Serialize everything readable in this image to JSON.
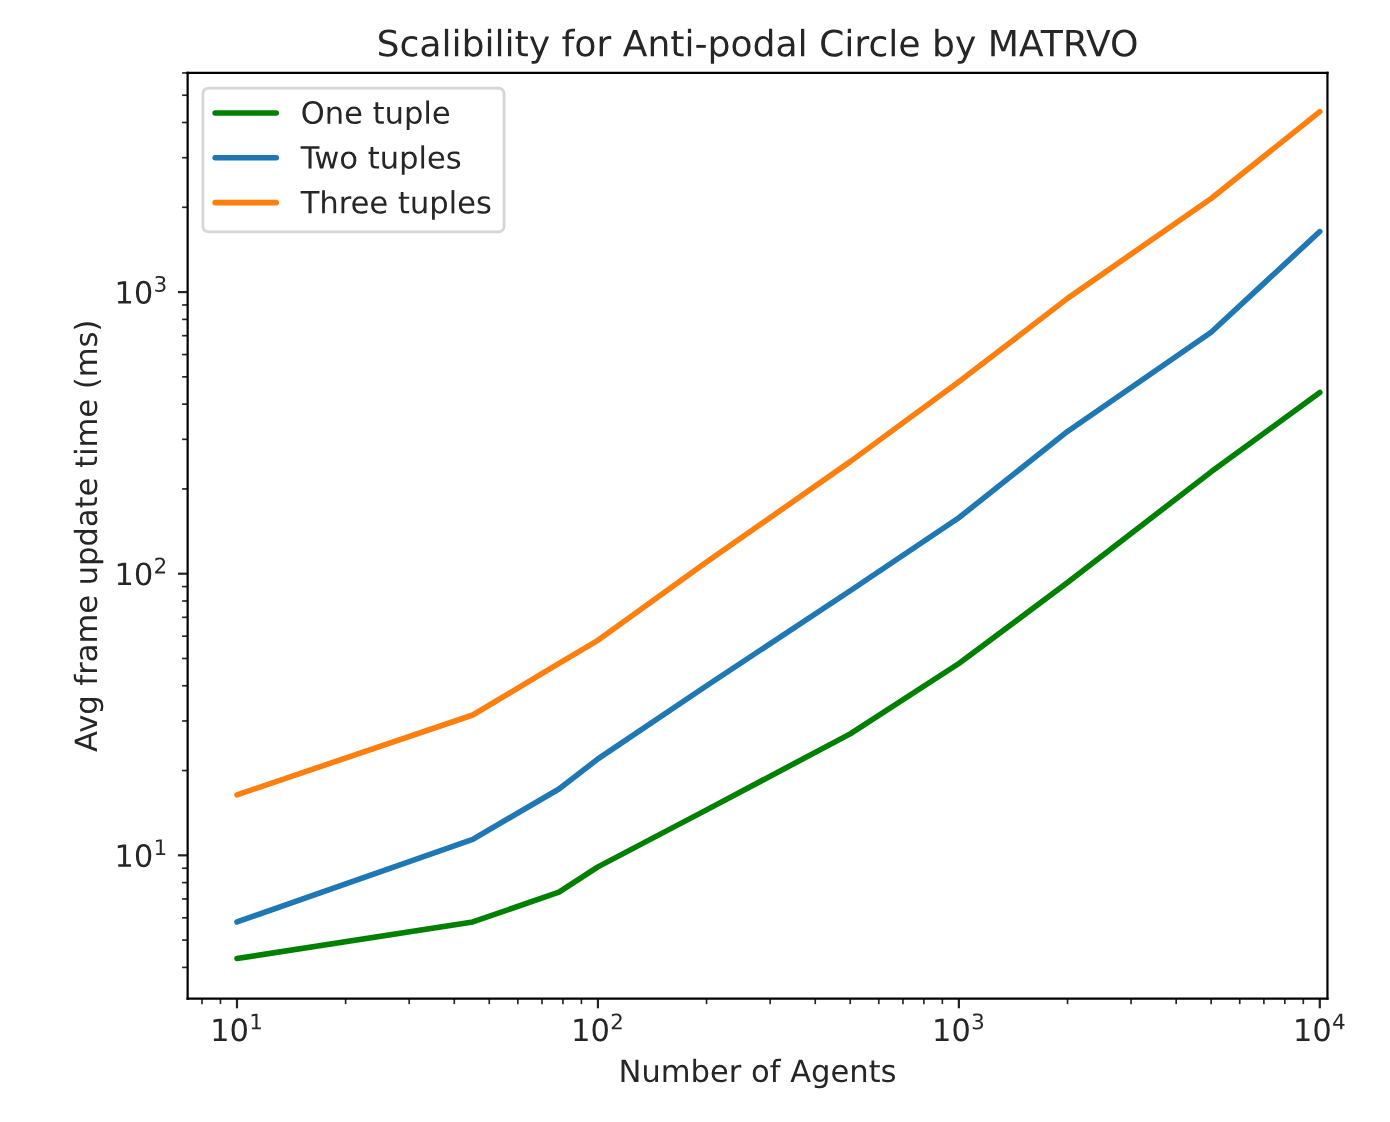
{
  "chart_data": {
    "type": "line",
    "title": "Scalibility for Anti-podal Circle by MATRVO",
    "xlabel": "Number of Agents",
    "ylabel": "Avg frame update time (ms)",
    "log": "xy",
    "legend": "top left",
    "grid": false,
    "xlim": [
      7.3,
      10500
    ],
    "ylim": [
      3.1,
      6000
    ],
    "xticks": [
      {
        "value": 10,
        "label": "10$^{1}$"
      },
      {
        "value": 100,
        "label": "10$^{2}$"
      },
      {
        "value": 1000,
        "label": "10$^{3}$"
      },
      {
        "value": 10000,
        "label": "10$^{4}$"
      }
    ],
    "yticks": [
      {
        "value": 10,
        "label": "10$^{1}$"
      },
      {
        "value": 100,
        "label": "10$^{2}$"
      },
      {
        "value": 1000,
        "label": "10$^{3}$"
      }
    ],
    "x": [
      10,
      45,
      78,
      100,
      200,
      500,
      1000,
      2000,
      5000,
      10000
    ],
    "series": [
      {
        "name": "One tuple",
        "color": "#008000",
        "values": [
          4.3,
          5.8,
          7.4,
          9.1,
          14.5,
          27,
          48,
          93,
          230,
          440
        ]
      },
      {
        "name": "Two tuples",
        "color": "#1f77b4",
        "values": [
          5.8,
          11.4,
          17.2,
          22,
          40,
          87,
          158,
          320,
          720,
          1640
        ]
      },
      {
        "name": "Three tuples",
        "color": "#ff7f0e",
        "values": [
          16.4,
          31.5,
          48,
          58,
          110,
          250,
          480,
          950,
          2150,
          4370
        ]
      }
    ]
  }
}
